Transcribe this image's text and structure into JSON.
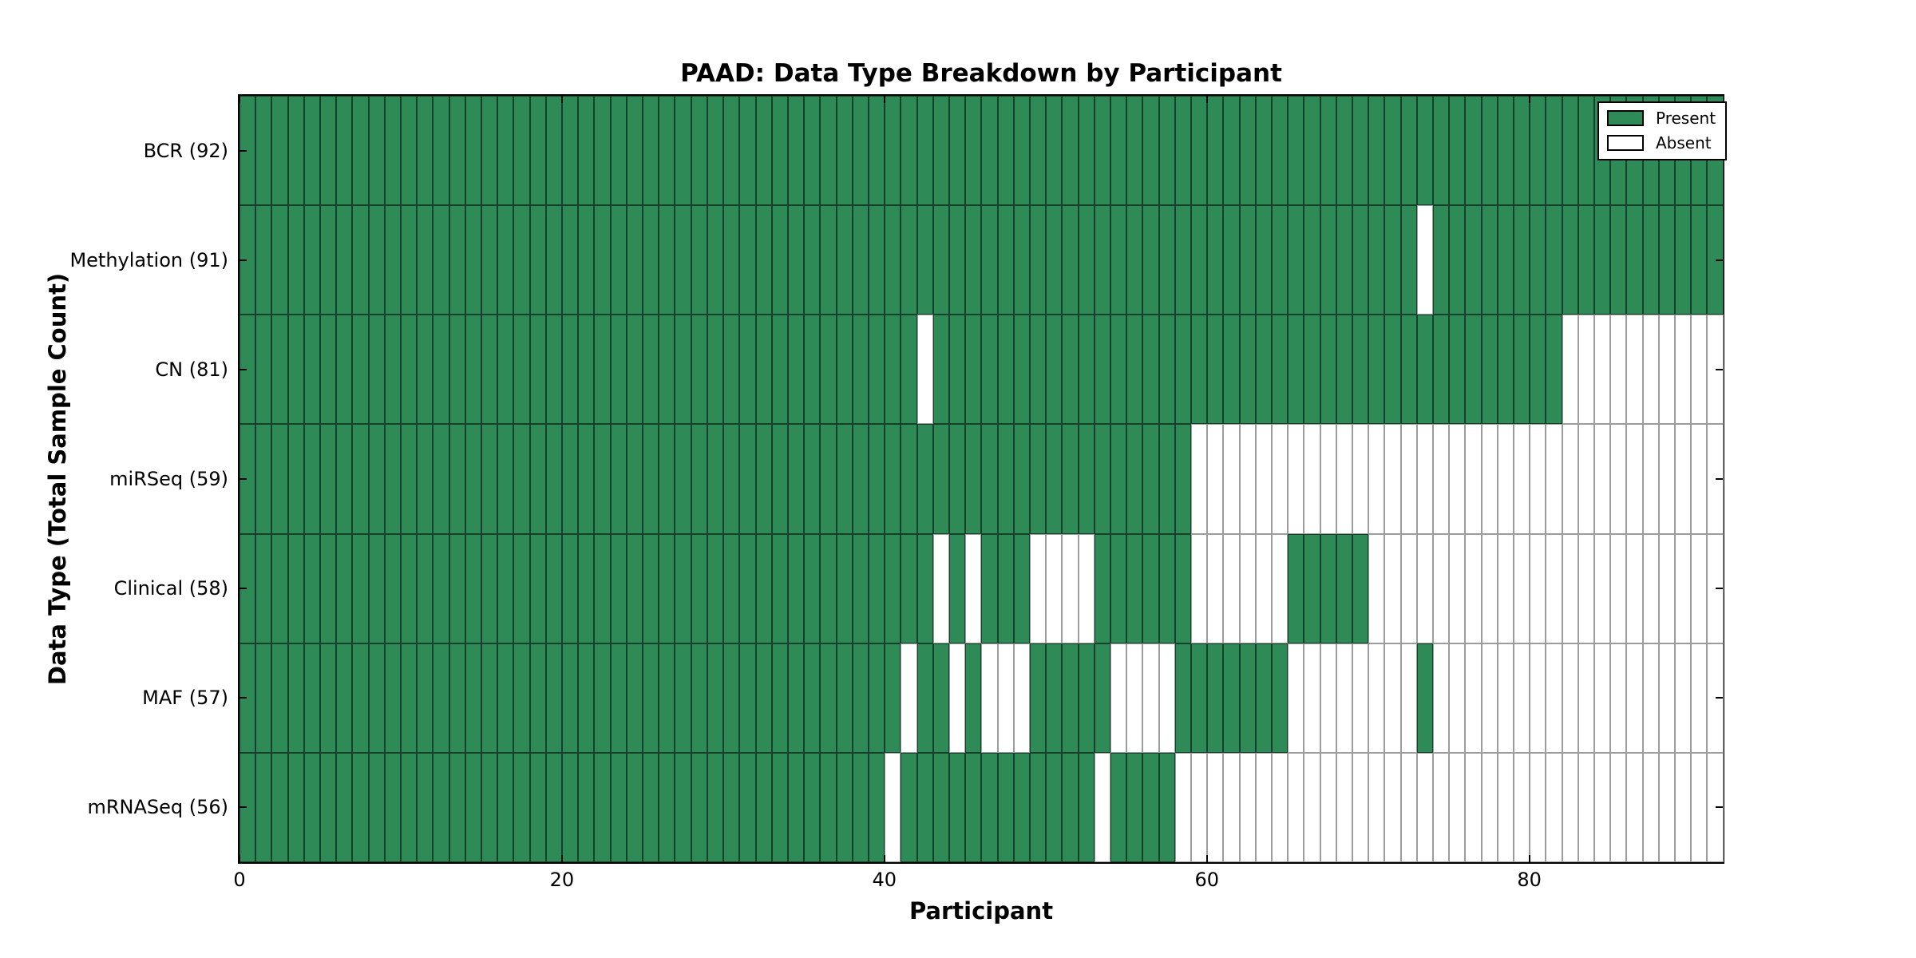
{
  "title": "PAAD: Data Type Breakdown by Participant",
  "x_axis_label": "Participant",
  "y_axis_label": "Data Type (Total Sample Count)",
  "legend": {
    "present_label": "Present",
    "absent_label": "Absent"
  },
  "colors": {
    "present": "#2e8b57",
    "absent": "#ffffff",
    "present_border": "#17402a",
    "absent_border": "#9c9c9c"
  },
  "chart_data": {
    "type": "heatmap",
    "title": "PAAD: Data Type Breakdown by Participant",
    "xlabel": "Participant",
    "ylabel": "Data Type (Total Sample Count)",
    "x_range": [
      0,
      92
    ],
    "n_participants": 92,
    "x_ticks": [
      0,
      20,
      40,
      60,
      80
    ],
    "x_tick_labels": [
      "0",
      "20",
      "40",
      "60",
      "80"
    ],
    "legend_entries": [
      "Present",
      "Absent"
    ],
    "legend_position": "upper right",
    "grid": false,
    "rows": [
      {
        "name": "BCR",
        "label": "BCR (92)",
        "present_count": 92,
        "absent_columns": []
      },
      {
        "name": "Methylation",
        "label": "Methylation (91)",
        "present_count": 91,
        "absent_columns": [
          73
        ]
      },
      {
        "name": "CN",
        "label": "CN (81)",
        "present_count": 81,
        "absent_columns": [
          42,
          82,
          83,
          84,
          85,
          86,
          87,
          88,
          89,
          90,
          91
        ]
      },
      {
        "name": "miRSeq",
        "label": "miRSeq (59)",
        "present_count": 59,
        "absent_columns": [
          59,
          60,
          61,
          62,
          63,
          64,
          65,
          66,
          67,
          68,
          69,
          70,
          71,
          72,
          73,
          74,
          75,
          76,
          77,
          78,
          79,
          80,
          81,
          82,
          83,
          84,
          85,
          86,
          87,
          88,
          89,
          90,
          91
        ]
      },
      {
        "name": "Clinical",
        "label": "Clinical (58)",
        "present_count": 58,
        "absent_columns": [
          43,
          45,
          49,
          50,
          51,
          52,
          59,
          60,
          61,
          62,
          63,
          64,
          70,
          71,
          72,
          73,
          74,
          75,
          76,
          77,
          78,
          79,
          80,
          81,
          82,
          83,
          84,
          85,
          86,
          87,
          88,
          89,
          90,
          91
        ]
      },
      {
        "name": "MAF",
        "label": "MAF (57)",
        "present_count": 57,
        "absent_columns": [
          41,
          44,
          46,
          47,
          48,
          54,
          55,
          56,
          57,
          65,
          66,
          67,
          68,
          69,
          70,
          71,
          72,
          74,
          75,
          76,
          77,
          78,
          79,
          80,
          81,
          82,
          83,
          84,
          85,
          86,
          87,
          88,
          89,
          90,
          91
        ]
      },
      {
        "name": "mRNASeq",
        "label": "mRNASeq (56)",
        "present_count": 56,
        "absent_columns": [
          40,
          53,
          58,
          59,
          60,
          61,
          62,
          63,
          64,
          65,
          66,
          67,
          68,
          69,
          70,
          71,
          72,
          73,
          74,
          75,
          76,
          77,
          78,
          79,
          80,
          81,
          82,
          83,
          84,
          85,
          86,
          87,
          88,
          89,
          90,
          91
        ]
      }
    ]
  }
}
